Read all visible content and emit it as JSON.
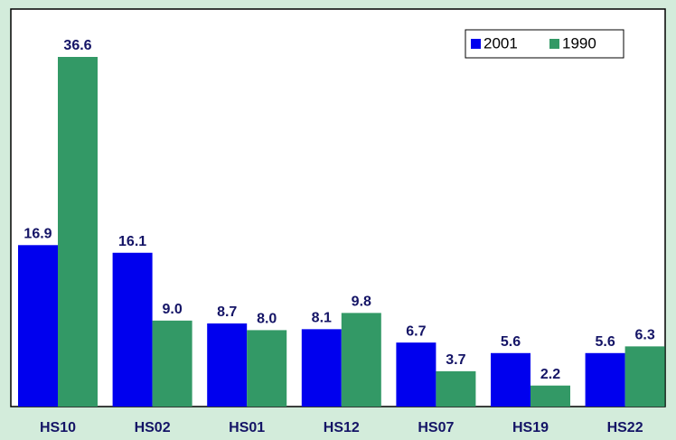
{
  "chart_data": {
    "type": "bar",
    "categories": [
      "HS10",
      "HS02",
      "HS01",
      "HS12",
      "HS07",
      "HS19",
      "HS22"
    ],
    "series": [
      {
        "name": "2001",
        "color": "#0000ee",
        "values": [
          16.9,
          16.1,
          8.7,
          8.1,
          6.7,
          5.6,
          5.6
        ],
        "value_labels": [
          "16.9",
          "16.1",
          "8.7",
          "8.1",
          "6.7",
          "5.6",
          "5.6"
        ]
      },
      {
        "name": "1990",
        "color": "#339966",
        "values": [
          36.6,
          9.0,
          8.0,
          9.8,
          3.7,
          2.2,
          6.3
        ],
        "value_labels": [
          "36.6",
          "9.0",
          "8.0",
          "9.8",
          "3.7",
          "2.2",
          "6.3"
        ]
      }
    ],
    "legend": "upper right"
  }
}
